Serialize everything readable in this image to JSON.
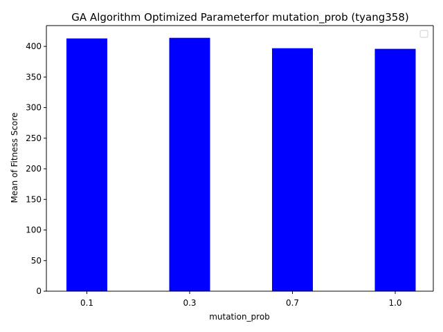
{
  "chart_data": {
    "type": "bar",
    "title": "GA Algorithm Optimized Parameterfor mutation_prob (tyang358)",
    "xlabel": "mutation_prob",
    "ylabel": "Mean of Fitness Score",
    "categories": [
      "0.1",
      "0.3",
      "0.7",
      "1.0"
    ],
    "series": [
      {
        "values": [
          413,
          414,
          397,
          396
        ]
      }
    ],
    "ylim": [
      0,
      434
    ],
    "yticks": [
      0,
      50,
      100,
      150,
      200,
      250,
      300,
      350,
      400
    ],
    "grid": false,
    "legend": {
      "placement": "top-right",
      "entries": []
    },
    "colors": {
      "bar": "#0000ff",
      "axis": "#000000"
    }
  }
}
